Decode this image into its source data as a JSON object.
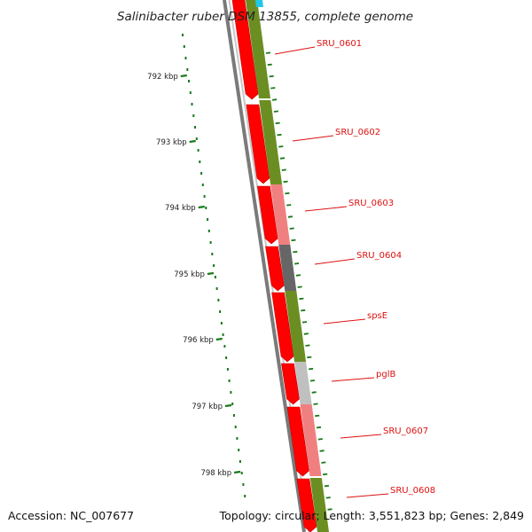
{
  "title": "Salinibacter ruber DSM 13855, complete genome",
  "footer": {
    "accession": "Accession: NC_007677",
    "topology": "Topology: circular; Length: 3,551,823 bp; Genes: 2,849"
  },
  "ruler": [
    "792 kbp",
    "793 kbp",
    "794 kbp",
    "795 kbp",
    "796 kbp",
    "797 kbp",
    "798 kbp"
  ],
  "genes": [
    {
      "name": "SRU_0601",
      "color": "#6b8e23"
    },
    {
      "name": "SRU_0602",
      "color": "#6b8e23"
    },
    {
      "name": "SRU_0603",
      "color": "#f08080"
    },
    {
      "name": "SRU_0604",
      "color": "#666666"
    },
    {
      "name": "spsE",
      "color": "#6b8e23"
    },
    {
      "name": "pglB",
      "color": "#c0c0c0"
    },
    {
      "name": "SRU_0607",
      "color": "#f08080"
    },
    {
      "name": "SRU_0608",
      "color": "#6b8e23"
    }
  ],
  "colors": {
    "cds": "#ff0000",
    "backbone": "#888888",
    "tick": "#1a7a1a",
    "label": "#dd1111"
  }
}
